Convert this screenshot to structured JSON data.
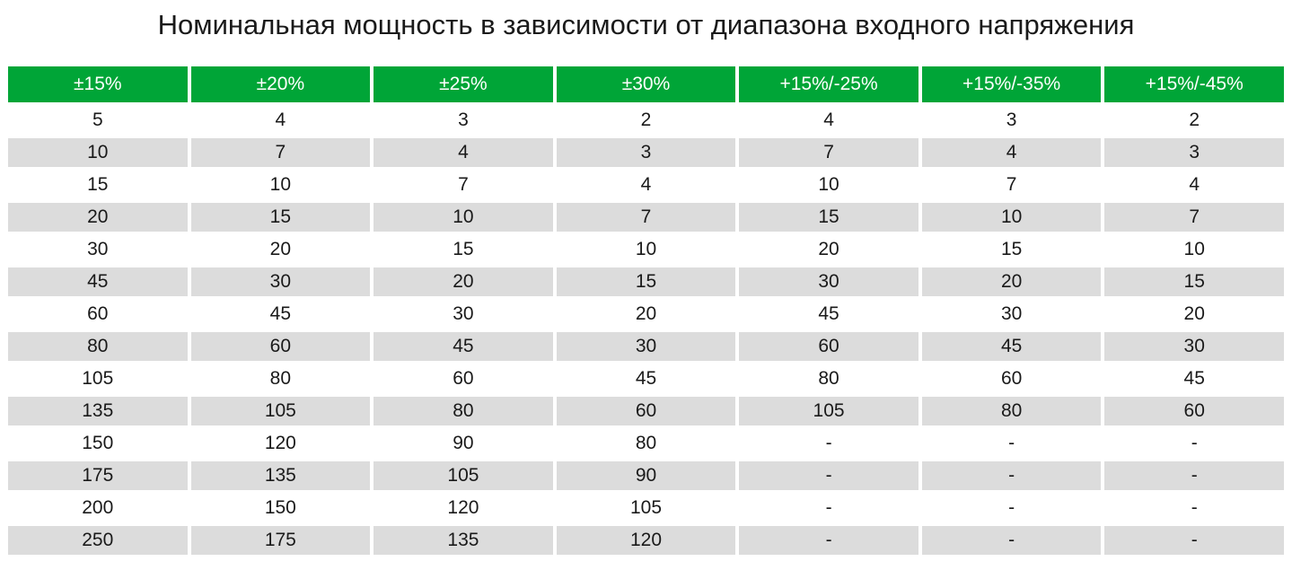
{
  "title": "Номинальная мощность в зависимости от диапазона входного напряжения",
  "colors": {
    "header_bg": "#00a537",
    "header_text": "#ffffff",
    "row_shade": "#dcdcdc"
  },
  "table": {
    "headers": [
      "±15%",
      "±20%",
      "±25%",
      "±30%",
      "+15%/-25%",
      "+15%/-35%",
      "+15%/-45%"
    ],
    "rows": [
      [
        "5",
        "4",
        "3",
        "2",
        "4",
        "3",
        "2"
      ],
      [
        "10",
        "7",
        "4",
        "3",
        "7",
        "4",
        "3"
      ],
      [
        "15",
        "10",
        "7",
        "4",
        "10",
        "7",
        "4"
      ],
      [
        "20",
        "15",
        "10",
        "7",
        "15",
        "10",
        "7"
      ],
      [
        "30",
        "20",
        "15",
        "10",
        "20",
        "15",
        "10"
      ],
      [
        "45",
        "30",
        "20",
        "15",
        "30",
        "20",
        "15"
      ],
      [
        "60",
        "45",
        "30",
        "20",
        "45",
        "30",
        "20"
      ],
      [
        "80",
        "60",
        "45",
        "30",
        "60",
        "45",
        "30"
      ],
      [
        "105",
        "80",
        "60",
        "45",
        "80",
        "60",
        "45"
      ],
      [
        "135",
        "105",
        "80",
        "60",
        "105",
        "80",
        "60"
      ],
      [
        "150",
        "120",
        "90",
        "80",
        "-",
        "-",
        "-"
      ],
      [
        "175",
        "135",
        "105",
        "90",
        "-",
        "-",
        "-"
      ],
      [
        "200",
        "150",
        "120",
        "105",
        "-",
        "-",
        "-"
      ],
      [
        "250",
        "175",
        "135",
        "120",
        "-",
        "-",
        "-"
      ]
    ]
  }
}
